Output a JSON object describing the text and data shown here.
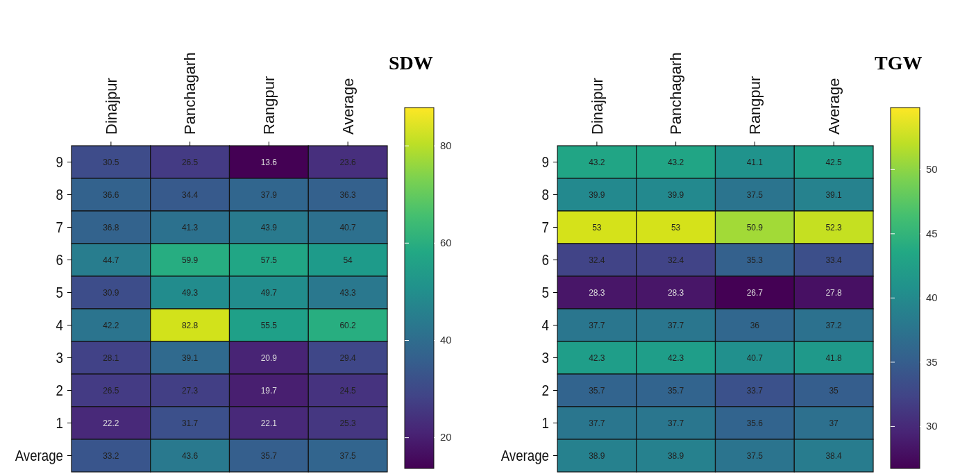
{
  "chart_data": [
    {
      "type": "heatmap",
      "clabel": "SDW",
      "categories": [
        "Dinajpur",
        "Panchagarh",
        "Rangpur",
        "Average"
      ],
      "y_categories": [
        "9",
        "8",
        "7",
        "6",
        "5",
        "4",
        "3",
        "2",
        "1",
        "Average"
      ],
      "cells": [
        [
          30.5,
          26.5,
          13.6,
          23.6
        ],
        [
          36.6,
          34.4,
          37.9,
          36.3
        ],
        [
          36.8,
          41.3,
          43.9,
          40.7
        ],
        [
          44.7,
          59.9,
          57.5,
          54
        ],
        [
          30.9,
          49.3,
          49.7,
          43.3
        ],
        [
          42.2,
          82.8,
          55.5,
          60.2
        ],
        [
          28.1,
          39.1,
          20.9,
          29.4
        ],
        [
          26.5,
          27.3,
          19.7,
          24.5
        ],
        [
          22.2,
          31.7,
          22.1,
          25.3
        ],
        [
          33.2,
          43.6,
          35.7,
          37.5
        ]
      ],
      "data_labels": true,
      "clim": [
        13.6,
        87.8
      ],
      "cticks": [
        20,
        40,
        60,
        80
      ]
    },
    {
      "type": "heatmap",
      "clabel": "TGW",
      "categories": [
        "Dinajpur",
        "Panchagarh",
        "Rangpur",
        "Average"
      ],
      "y_categories": [
        "9",
        "8",
        "7",
        "6",
        "5",
        "4",
        "3",
        "2",
        "1",
        "Average"
      ],
      "cells": [
        [
          43.2,
          43.2,
          41.1,
          42.5
        ],
        [
          39.9,
          39.9,
          37.5,
          39.1
        ],
        [
          53,
          53,
          50.9,
          52.3
        ],
        [
          32.4,
          32.4,
          35.3,
          33.4
        ],
        [
          28.3,
          28.3,
          26.7,
          27.8
        ],
        [
          37.7,
          37.7,
          36,
          37.2
        ],
        [
          42.3,
          42.3,
          40.7,
          41.8
        ],
        [
          35.7,
          35.7,
          33.7,
          35
        ],
        [
          37.7,
          37.7,
          35.6,
          37
        ],
        [
          38.9,
          38.9,
          37.5,
          38.4
        ]
      ],
      "data_labels": true,
      "clim": [
        26.7,
        54.8
      ],
      "cticks": [
        30,
        35,
        40,
        45,
        50
      ]
    }
  ]
}
